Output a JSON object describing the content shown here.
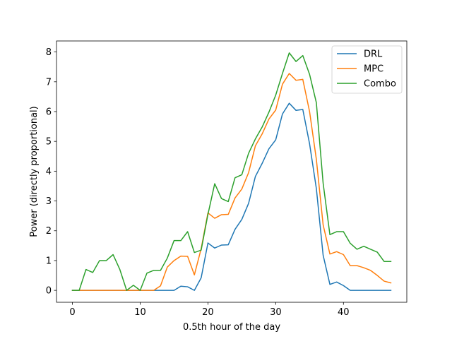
{
  "chart_data": {
    "type": "line",
    "title": "",
    "xlabel": "0.5th hour of the day",
    "ylabel": "Power (directly proportional)",
    "xlim": [
      -2.35,
      49.35
    ],
    "ylim": [
      -0.4,
      8.37
    ],
    "xticks": [
      0,
      10,
      20,
      30,
      40
    ],
    "yticks": [
      0,
      1,
      2,
      3,
      4,
      5,
      6,
      7,
      8
    ],
    "grid": false,
    "legend_position": "top-right",
    "x": [
      0,
      1,
      2,
      3,
      4,
      5,
      6,
      7,
      8,
      9,
      10,
      11,
      12,
      13,
      14,
      15,
      16,
      17,
      18,
      19,
      20,
      21,
      22,
      23,
      24,
      25,
      26,
      27,
      28,
      29,
      30,
      31,
      32,
      33,
      34,
      35,
      36,
      37,
      38,
      39,
      40,
      41,
      42,
      43,
      44,
      45,
      46,
      47
    ],
    "series": [
      {
        "name": "DRL",
        "color": "#1f77b4",
        "values": [
          0,
          0,
          0,
          0,
          0,
          0,
          0,
          0,
          0,
          0,
          0,
          0,
          0,
          0,
          0,
          0,
          0.14,
          0.12,
          0,
          0.42,
          1.59,
          1.42,
          1.52,
          1.53,
          2.05,
          2.38,
          2.92,
          3.82,
          4.26,
          4.75,
          5.05,
          5.92,
          6.28,
          6.04,
          6.07,
          4.92,
          3.42,
          1.18,
          0.2,
          0.28,
          0.16,
          0,
          0,
          0,
          0,
          0,
          0,
          0
        ]
      },
      {
        "name": "MPC",
        "color": "#ff7f0e",
        "values": [
          0,
          0,
          0,
          0,
          0,
          0,
          0,
          0,
          0,
          0,
          0,
          0,
          0,
          0.15,
          0.78,
          1.0,
          1.15,
          1.14,
          0.52,
          1.4,
          2.6,
          2.42,
          2.54,
          2.55,
          3.1,
          3.4,
          3.95,
          4.85,
          5.25,
          5.75,
          6.05,
          6.92,
          7.28,
          7.05,
          7.08,
          6.0,
          4.4,
          2.2,
          1.22,
          1.3,
          1.2,
          0.83,
          0.83,
          0.76,
          0.67,
          0.5,
          0.31,
          0.25
        ]
      },
      {
        "name": "Combo",
        "color": "#2ca02c",
        "values": [
          0,
          0,
          0.7,
          0.6,
          1.0,
          1.0,
          1.2,
          0.7,
          0,
          0.17,
          0,
          0.58,
          0.67,
          0.67,
          1.08,
          1.67,
          1.67,
          1.97,
          1.27,
          1.35,
          2.55,
          3.58,
          3.08,
          2.98,
          3.78,
          3.88,
          4.6,
          5.08,
          5.48,
          5.98,
          6.55,
          7.28,
          7.97,
          7.68,
          7.88,
          7.25,
          6.3,
          3.6,
          1.87,
          1.97,
          1.97,
          1.58,
          1.38,
          1.48,
          1.38,
          1.28,
          0.97,
          0.97
        ]
      }
    ]
  }
}
